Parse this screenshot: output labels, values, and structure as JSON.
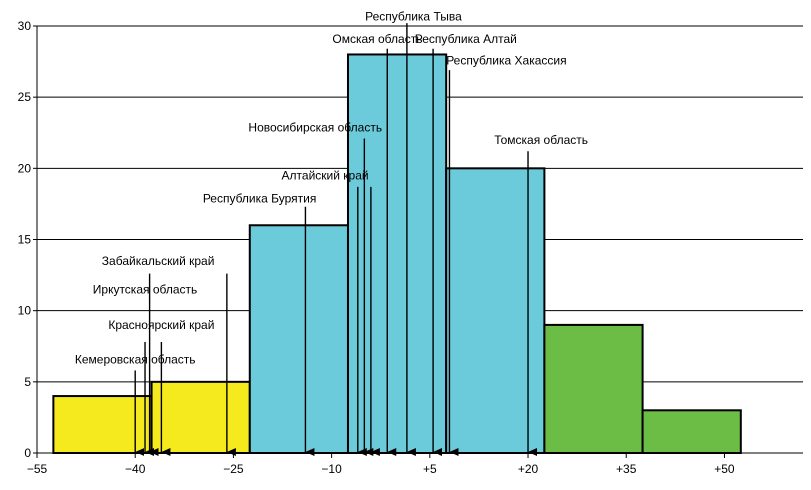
{
  "chart_data": {
    "type": "histogram",
    "title": "",
    "xlabel": "",
    "ylabel": "",
    "xlim": [
      -55,
      62
    ],
    "ylim": [
      0,
      30
    ],
    "x_ticks": [
      {
        "value": -55,
        "label": "−55"
      },
      {
        "value": -40,
        "label": "−40"
      },
      {
        "value": -25,
        "label": "−25"
      },
      {
        "value": -10,
        "label": "−10"
      },
      {
        "value": 5,
        "label": "+5"
      },
      {
        "value": 20,
        "label": "+20"
      },
      {
        "value": 35,
        "label": "+35"
      },
      {
        "value": 50,
        "label": "+50"
      }
    ],
    "y_ticks": [
      0,
      5,
      10,
      15,
      20,
      25,
      30
    ],
    "grid": true,
    "colors": {
      "yellow": "#f5ea1e",
      "blue": "#6ccbdb",
      "green": "#6bbd45"
    },
    "bins": [
      {
        "from": -52.5,
        "to": -37.5,
        "value": 4,
        "color": "yellow"
      },
      {
        "from": -37.5,
        "to": -22.5,
        "value": 5,
        "color": "yellow"
      },
      {
        "from": -22.5,
        "to": -7.5,
        "value": 16,
        "color": "blue"
      },
      {
        "from": -7.5,
        "to": 7.5,
        "value": 28,
        "color": "blue"
      },
      {
        "from": 7.5,
        "to": 22.5,
        "value": 20,
        "color": "blue"
      },
      {
        "from": 22.5,
        "to": 37.5,
        "value": 9,
        "color": "green"
      },
      {
        "from": 37.5,
        "to": 52.5,
        "value": 3,
        "color": "green"
      }
    ],
    "annotations": [
      {
        "label": "Кемеровская область",
        "x": -40,
        "label_y": 6.3,
        "anchor": "middle"
      },
      {
        "label": "Красноярский край",
        "x": -36,
        "label_y": 8.7,
        "anchor": "middle"
      },
      {
        "label": "Иркутская область",
        "x": -38.5,
        "label_y": 11.2,
        "anchor": "middle"
      },
      {
        "label": "Забайкальский край",
        "x": -36.5,
        "label_y": 13.2,
        "anchor": "middle"
      },
      {
        "label": "Республика Бурятия",
        "x": -21,
        "label_y": 17.6,
        "anchor": "middle"
      },
      {
        "label": "Алтайский край",
        "x": -11,
        "label_y": 19.2,
        "anchor": "middle"
      },
      {
        "label": "Новосибирская область",
        "x": -12.5,
        "label_y": 22.6,
        "anchor": "middle"
      },
      {
        "label": "Омская область",
        "x": -3,
        "label_y": 28.8,
        "anchor": "middle"
      },
      {
        "label": "Республика Тыва",
        "x": 2.5,
        "label_y": 30.4,
        "anchor": "middle"
      },
      {
        "label": "Республика Алтай",
        "x": 10.5,
        "label_y": 28.8,
        "anchor": "middle"
      },
      {
        "label": "Республика Хакассия",
        "x": 7.5,
        "label_y": 27.3,
        "anchor": "start"
      },
      {
        "label": "Томская область",
        "x": 22,
        "label_y": 21.7,
        "anchor": "middle"
      }
    ],
    "arrows": [
      {
        "x": -40,
        "from_y": 5.8
      },
      {
        "x": -36,
        "from_y": 7.8
      },
      {
        "x": -38.5,
        "from_y": 7.8
      },
      {
        "x": -37.8,
        "from_y": 12.6
      },
      {
        "x": -26,
        "from_y": 12.6
      },
      {
        "x": -14,
        "from_y": 17.3
      },
      {
        "x": -6,
        "from_y": 18.7
      },
      {
        "x": -4,
        "from_y": 18.7
      },
      {
        "x": -5,
        "from_y": 22.1
      },
      {
        "x": -1.5,
        "from_y": 28.4
      },
      {
        "x": 1.5,
        "from_y": 30.2
      },
      {
        "x": 5.5,
        "from_y": 28.4
      },
      {
        "x": 8,
        "from_y": 26.9
      },
      {
        "x": 20,
        "from_y": 21.2
      }
    ]
  }
}
